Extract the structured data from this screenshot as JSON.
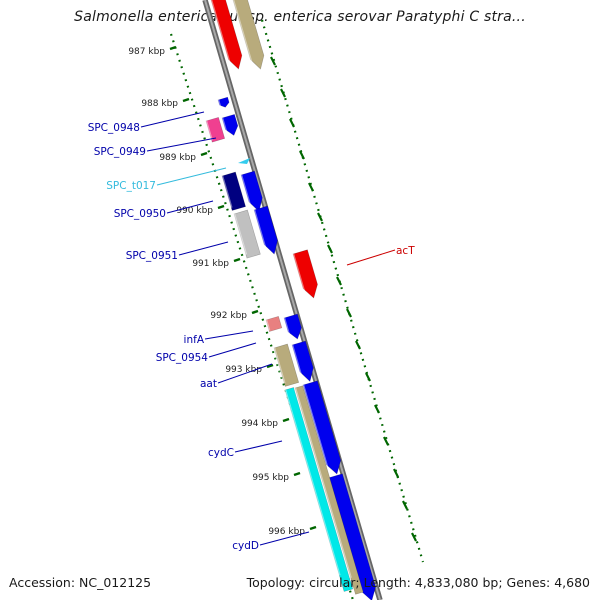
{
  "title": "Salmonella enterica subsp. enterica serovar Paratyphi C stra...",
  "footer": {
    "accession": "Accession: NC_012125",
    "topology": "Topology: circular; Length: 4,833,080 bp; Genes: 4,680"
  },
  "colors": {
    "cds_blue": "#0000ee",
    "cds_navy": "#000080",
    "rrna_red": "#ee0000",
    "trna_cyan": "#33ccee",
    "orange_khaki": "#b8ab7c",
    "cyan_band": "#00e8e8",
    "gray_block": "#c0c0c0",
    "pink_block": "#f04090",
    "salmon_block": "#e88080",
    "tick_green": "#006600",
    "backbone_gray": "#808080"
  },
  "ticks": [
    "987 kbp",
    "988 kbp",
    "989 kbp",
    "990 kbp",
    "991 kbp",
    "992 kbp",
    "993 kbp",
    "994 kbp",
    "995 kbp",
    "996 kbp"
  ],
  "gene_labels": [
    {
      "text": "SPC_0948",
      "color": "#0000aa"
    },
    {
      "text": "SPC_0949",
      "color": "#0000aa"
    },
    {
      "text": "SPC_t017",
      "color": "#33bbdd"
    },
    {
      "text": "SPC_0950",
      "color": "#0000aa"
    },
    {
      "text": "SPC_0951",
      "color": "#0000aa"
    },
    {
      "text": "infA",
      "color": "#0000aa"
    },
    {
      "text": "SPC_0954",
      "color": "#0000aa"
    },
    {
      "text": "aat",
      "color": "#0000aa"
    },
    {
      "text": "cydC",
      "color": "#0000aa"
    },
    {
      "text": "cydD",
      "color": "#0000aa"
    },
    {
      "text": "acT",
      "color": "#cc0000"
    }
  ]
}
